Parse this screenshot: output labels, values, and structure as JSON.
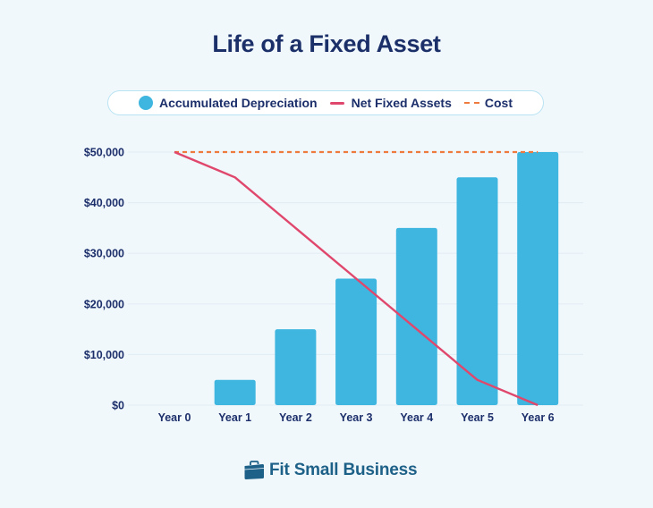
{
  "header": {
    "title": "Life of a Fixed Asset"
  },
  "legend": {
    "items": [
      {
        "label": "Accumulated Depreciation",
        "swatch": "circle",
        "color": "#3fb6df"
      },
      {
        "label": "Net Fixed Assets",
        "swatch": "solid-line",
        "color": "#e0476c"
      },
      {
        "label": "Cost",
        "swatch": "dashed-line",
        "color": "#ef7a3e"
      }
    ]
  },
  "axes": {
    "y_ticks": [
      "$0",
      "$10,000",
      "$20,000",
      "$30,000",
      "$40,000",
      "$50,000"
    ],
    "x_ticks": [
      "Year 0",
      "Year 1",
      "Year 2",
      "Year 3",
      "Year 4",
      "Year 5",
      "Year 6"
    ]
  },
  "footer": {
    "brand": "Fit Small Business",
    "brand_icon": "briefcase-icon"
  },
  "colors": {
    "background": "#f1f8fc",
    "bar": "#3fb6df",
    "net_line": "#e0476c",
    "cost_line": "#ef7a3e",
    "text": "#1c2f6b",
    "brand": "#1e6188"
  },
  "chart_data": {
    "type": "bar",
    "title": "Life of a Fixed Asset",
    "xlabel": "",
    "ylabel": "",
    "categories": [
      "Year 0",
      "Year 1",
      "Year 2",
      "Year 3",
      "Year 4",
      "Year 5",
      "Year 6"
    ],
    "series": [
      {
        "name": "Accumulated Depreciation",
        "type": "bar",
        "values": [
          0,
          5000,
          15000,
          25000,
          35000,
          45000,
          50000
        ]
      },
      {
        "name": "Net Fixed Assets",
        "type": "line",
        "values": [
          50000,
          45000,
          35000,
          25000,
          15000,
          5000,
          0
        ]
      },
      {
        "name": "Cost",
        "type": "line-dashed",
        "values": [
          50000,
          50000,
          50000,
          50000,
          50000,
          50000,
          50000
        ]
      }
    ],
    "ylim": [
      0,
      50000
    ],
    "yticks": [
      0,
      10000,
      20000,
      30000,
      40000,
      50000
    ],
    "grid": true,
    "legend_position": "top"
  }
}
